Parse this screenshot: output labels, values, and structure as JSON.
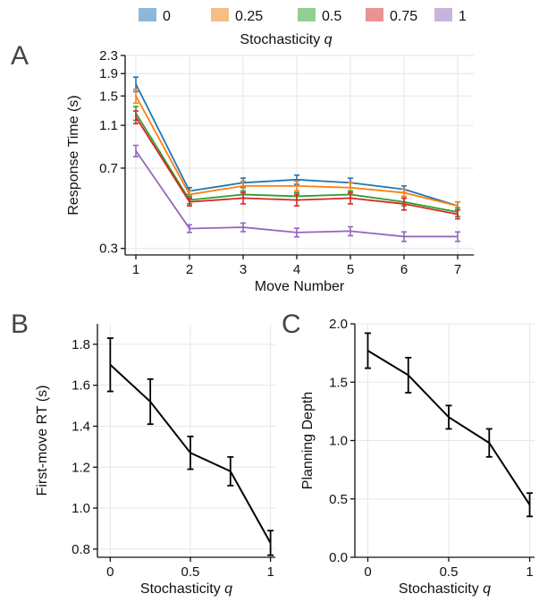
{
  "legend": {
    "title_prefix": "Stochasticity ",
    "title_var": "q",
    "items": [
      {
        "label": "0",
        "color": "#1f77b4",
        "swatch": "#8db8d9"
      },
      {
        "label": "0.25",
        "color": "#ff7f0e",
        "swatch": "#f7bd87"
      },
      {
        "label": "0.5",
        "color": "#2ca02c",
        "swatch": "#93cf93"
      },
      {
        "label": "0.75",
        "color": "#d62728",
        "swatch": "#eb9393"
      },
      {
        "label": "1",
        "color": "#9467bd",
        "swatch": "#c9b3dd"
      }
    ]
  },
  "panels": {
    "A": "A",
    "B": "B",
    "C": "C"
  },
  "chart_data": [
    {
      "panel": "A",
      "type": "line",
      "xlabel": "Move Number",
      "ylabel": "Response Time (s)",
      "yscale": "log",
      "x": [
        1,
        2,
        3,
        4,
        5,
        6,
        7
      ],
      "x_ticks": [
        "1",
        "2",
        "3",
        "4",
        "5",
        "6",
        "7"
      ],
      "xlim": [
        0.8,
        7.3
      ],
      "ylim": [
        0.28,
        2.3
      ],
      "y_ticks": [
        0.3,
        0.7,
        1.1,
        1.5,
        1.9,
        2.3
      ],
      "y_tick_labels": [
        "0.3",
        "0.7",
        "1.1",
        "1.5",
        "1.9",
        "2.3"
      ],
      "series": [
        {
          "name": "0",
          "color": "#1f77b4",
          "values": [
            1.7,
            0.55,
            0.6,
            0.62,
            0.6,
            0.56,
            0.47
          ],
          "err": [
            0.13,
            0.02,
            0.03,
            0.03,
            0.03,
            0.02,
            0.02
          ]
        },
        {
          "name": "0.25",
          "color": "#ff7f0e",
          "values": [
            1.5,
            0.53,
            0.58,
            0.58,
            0.57,
            0.54,
            0.47
          ],
          "err": [
            0.11,
            0.02,
            0.03,
            0.03,
            0.03,
            0.02,
            0.02
          ]
        },
        {
          "name": "0.5",
          "color": "#2ca02c",
          "values": [
            1.25,
            0.5,
            0.53,
            0.52,
            0.53,
            0.49,
            0.44
          ],
          "err": [
            0.09,
            0.02,
            0.02,
            0.02,
            0.02,
            0.02,
            0.02
          ]
        },
        {
          "name": "0.75",
          "color": "#d62728",
          "values": [
            1.2,
            0.49,
            0.51,
            0.5,
            0.51,
            0.48,
            0.43
          ],
          "err": [
            0.08,
            0.02,
            0.03,
            0.03,
            0.03,
            0.03,
            0.02
          ]
        },
        {
          "name": "1",
          "color": "#9467bd",
          "values": [
            0.84,
            0.37,
            0.375,
            0.355,
            0.36,
            0.34,
            0.34
          ],
          "err": [
            0.05,
            0.015,
            0.017,
            0.016,
            0.017,
            0.017,
            0.017
          ]
        }
      ]
    },
    {
      "panel": "B",
      "type": "line",
      "xlabel_prefix": "Stochasticity ",
      "xlabel_var": "q",
      "ylabel": "First-move RT (s)",
      "x": [
        0,
        0.25,
        0.5,
        0.75,
        1
      ],
      "x_tick_values": [
        0,
        0.5,
        1
      ],
      "x_ticks": [
        "0",
        "0.5",
        "1"
      ],
      "xlim": [
        -0.08,
        1.03
      ],
      "ylim": [
        0.76,
        1.9
      ],
      "y_ticks": [
        0.8,
        1.0,
        1.2,
        1.4,
        1.6,
        1.8
      ],
      "y_tick_labels": [
        "0.8",
        "1.0",
        "1.2",
        "1.4",
        "1.6",
        "1.8"
      ],
      "series": [
        {
          "color": "#000000",
          "values": [
            1.7,
            1.52,
            1.27,
            1.18,
            0.83
          ],
          "err": [
            0.13,
            0.11,
            0.08,
            0.07,
            0.06
          ]
        }
      ]
    },
    {
      "panel": "C",
      "type": "line",
      "xlabel_prefix": "Stochasticity ",
      "xlabel_var": "q",
      "ylabel": "Planning Depth",
      "x": [
        0,
        0.25,
        0.5,
        0.75,
        1
      ],
      "x_tick_values": [
        0,
        0.5,
        1
      ],
      "x_ticks": [
        "0",
        "0.5",
        "1"
      ],
      "xlim": [
        -0.08,
        1.03
      ],
      "ylim": [
        0,
        2.0
      ],
      "y_ticks": [
        0,
        0.5,
        1.0,
        1.5,
        2.0
      ],
      "y_tick_labels": [
        "0.0",
        "0.5",
        "1.0",
        "1.5",
        "2.0"
      ],
      "series": [
        {
          "color": "#000000",
          "values": [
            1.77,
            1.56,
            1.2,
            0.98,
            0.45
          ],
          "err": [
            0.15,
            0.15,
            0.1,
            0.12,
            0.1
          ]
        }
      ]
    }
  ]
}
